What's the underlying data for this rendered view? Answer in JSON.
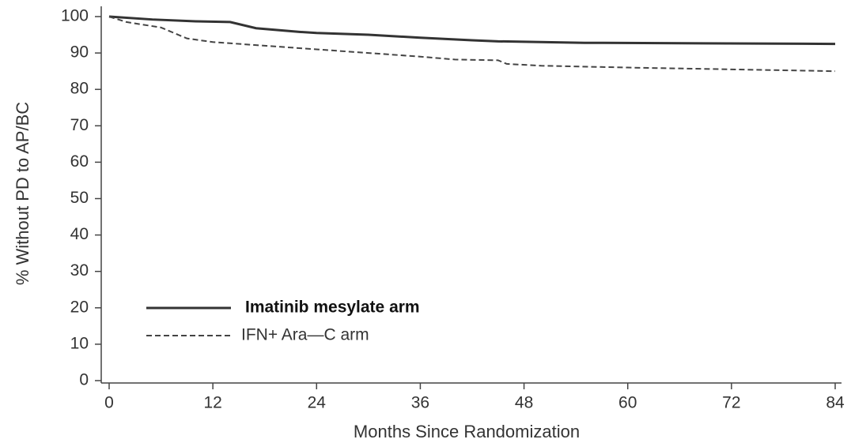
{
  "chart_data": {
    "type": "line",
    "x_label": "Months Since Randomization",
    "y_label": "% Without PD to AP/BC",
    "xlim": [
      0,
      84
    ],
    "xticks": [
      0,
      12,
      24,
      36,
      48,
      60,
      72,
      84
    ],
    "ylim": [
      0,
      100
    ],
    "yticks": [
      0,
      10,
      20,
      30,
      40,
      50,
      60,
      70,
      80,
      90,
      100
    ],
    "legend": "lower-left",
    "series": [
      {
        "name": "Imatinib mesylate arm",
        "color": "#333333",
        "dash": "solid",
        "x": [
          0,
          5,
          10,
          14,
          17,
          22,
          24,
          30,
          36,
          42,
          45,
          55,
          84
        ],
        "values": [
          100,
          99.2,
          98.7,
          98.5,
          96.8,
          95.8,
          95.5,
          95,
          94.2,
          93.5,
          93.2,
          92.8,
          92.5
        ]
      },
      {
        "name": "IFN+ Ara—C arm",
        "color": "#444444",
        "dash": "dashed",
        "x": [
          0,
          2,
          6,
          9,
          12,
          18,
          24,
          30,
          36,
          40,
          45,
          46,
          50,
          60,
          72,
          84
        ],
        "values": [
          100,
          98.5,
          97,
          94,
          93,
          92,
          91,
          90,
          89,
          88.2,
          88,
          87,
          86.5,
          86,
          85.5,
          85
        ]
      }
    ]
  }
}
